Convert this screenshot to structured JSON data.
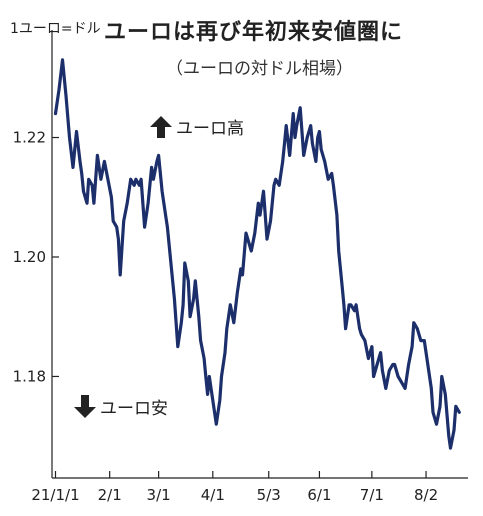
{
  "header": {
    "unit_label": "1ユーロ=ドル",
    "title": "ユーロは再び年初来安値圏に",
    "subtitle": "（ユーロの対ドル相場）"
  },
  "annotations": {
    "up_label": "ユーロ高",
    "down_label": "ユーロ安"
  },
  "chart_data": {
    "type": "line",
    "title": "ユーロは再び年初来安値圏に",
    "subtitle": "（ユーロの対ドル相場）",
    "ylabel": "1ユーロ=ドル",
    "xlabel": "",
    "ylim": [
      1.163,
      1.238
    ],
    "y_ticks": [
      1.18,
      1.2,
      1.22
    ],
    "y_tick_labels": [
      "1.18",
      "1.20",
      "1.22"
    ],
    "x_ticks": [
      0,
      31,
      59,
      90,
      122,
      151,
      181,
      212
    ],
    "x_tick_labels": [
      "21/1/1",
      "2/1",
      "3/1",
      "4/1",
      "5/3",
      "6/1",
      "7/1",
      "8/2"
    ],
    "xlim": [
      -2,
      236
    ],
    "grid": false,
    "series": [
      {
        "name": "",
        "color": "#1c2f6b",
        "points": [
          [
            0,
            1.224
          ],
          [
            2,
            1.228
          ],
          [
            4,
            1.233
          ],
          [
            6,
            1.227
          ],
          [
            8,
            1.22
          ],
          [
            10,
            1.215
          ],
          [
            12,
            1.221
          ],
          [
            14,
            1.216
          ],
          [
            15,
            1.214
          ],
          [
            16,
            1.211
          ],
          [
            18,
            1.209
          ],
          [
            19,
            1.213
          ],
          [
            21,
            1.212
          ],
          [
            22,
            1.209
          ],
          [
            24,
            1.217
          ],
          [
            26,
            1.213
          ],
          [
            28,
            1.216
          ],
          [
            30,
            1.213
          ],
          [
            32,
            1.21
          ],
          [
            33,
            1.206
          ],
          [
            35,
            1.205
          ],
          [
            36,
            1.203
          ],
          [
            37,
            1.197
          ],
          [
            39,
            1.206
          ],
          [
            41,
            1.209
          ],
          [
            43,
            1.213
          ],
          [
            45,
            1.212
          ],
          [
            46,
            1.213
          ],
          [
            48,
            1.212
          ],
          [
            49,
            1.213
          ],
          [
            51,
            1.205
          ],
          [
            53,
            1.209
          ],
          [
            55,
            1.215
          ],
          [
            56,
            1.213
          ],
          [
            58,
            1.216
          ],
          [
            59,
            1.217
          ],
          [
            61,
            1.211
          ],
          [
            63,
            1.207
          ],
          [
            64,
            1.205
          ],
          [
            66,
            1.199
          ],
          [
            68,
            1.193
          ],
          [
            70,
            1.185
          ],
          [
            72,
            1.189
          ],
          [
            73,
            1.192
          ],
          [
            74,
            1.199
          ],
          [
            76,
            1.196
          ],
          [
            77,
            1.19
          ],
          [
            79,
            1.193
          ],
          [
            80,
            1.196
          ],
          [
            82,
            1.19
          ],
          [
            83,
            1.186
          ],
          [
            85,
            1.183
          ],
          [
            86,
            1.18
          ],
          [
            87,
            1.177
          ],
          [
            88,
            1.18
          ],
          [
            90,
            1.176
          ],
          [
            92,
            1.172
          ],
          [
            94,
            1.176
          ],
          [
            95,
            1.18
          ],
          [
            97,
            1.184
          ],
          [
            98,
            1.188
          ],
          [
            100,
            1.192
          ],
          [
            102,
            1.189
          ],
          [
            104,
            1.194
          ],
          [
            106,
            1.198
          ],
          [
            107,
            1.197
          ],
          [
            109,
            1.204
          ],
          [
            110,
            1.203
          ],
          [
            112,
            1.201
          ],
          [
            114,
            1.204
          ],
          [
            116,
            1.209
          ],
          [
            117,
            1.207
          ],
          [
            119,
            1.211
          ],
          [
            121,
            1.203
          ],
          [
            123,
            1.206
          ],
          [
            125,
            1.212
          ],
          [
            126,
            1.213
          ],
          [
            128,
            1.212
          ],
          [
            130,
            1.216
          ],
          [
            131,
            1.219
          ],
          [
            132,
            1.222
          ],
          [
            134,
            1.217
          ],
          [
            136,
            1.224
          ],
          [
            137,
            1.22
          ],
          [
            138,
            1.222
          ],
          [
            140,
            1.225
          ],
          [
            142,
            1.217
          ],
          [
            144,
            1.22
          ],
          [
            146,
            1.222
          ],
          [
            147,
            1.219
          ],
          [
            149,
            1.216
          ],
          [
            150,
            1.22
          ],
          [
            151,
            1.221
          ],
          [
            152,
            1.218
          ],
          [
            154,
            1.216
          ],
          [
            156,
            1.213
          ],
          [
            158,
            1.214
          ],
          [
            159,
            1.212
          ],
          [
            161,
            1.207
          ],
          [
            162,
            1.201
          ],
          [
            164,
            1.195
          ],
          [
            165,
            1.192
          ],
          [
            166,
            1.188
          ],
          [
            168,
            1.192
          ],
          [
            169,
            1.192
          ],
          [
            171,
            1.191
          ],
          [
            172,
            1.192
          ],
          [
            174,
            1.188
          ],
          [
            175,
            1.187
          ],
          [
            177,
            1.186
          ],
          [
            179,
            1.183
          ],
          [
            181,
            1.185
          ],
          [
            182,
            1.18
          ],
          [
            184,
            1.182
          ],
          [
            186,
            1.184
          ],
          [
            187,
            1.181
          ],
          [
            189,
            1.178
          ],
          [
            191,
            1.181
          ],
          [
            193,
            1.182
          ],
          [
            194,
            1.182
          ],
          [
            196,
            1.18
          ],
          [
            198,
            1.179
          ],
          [
            200,
            1.178
          ],
          [
            202,
            1.182
          ],
          [
            204,
            1.185
          ],
          [
            205,
            1.189
          ],
          [
            207,
            1.188
          ],
          [
            209,
            1.186
          ],
          [
            211,
            1.186
          ],
          [
            213,
            1.182
          ],
          [
            215,
            1.178
          ],
          [
            216,
            1.174
          ],
          [
            218,
            1.172
          ],
          [
            220,
            1.175
          ],
          [
            221,
            1.18
          ],
          [
            223,
            1.177
          ],
          [
            225,
            1.17
          ],
          [
            226,
            1.168
          ],
          [
            228,
            1.171
          ],
          [
            229,
            1.175
          ],
          [
            231,
            1.174
          ]
        ]
      }
    ]
  }
}
